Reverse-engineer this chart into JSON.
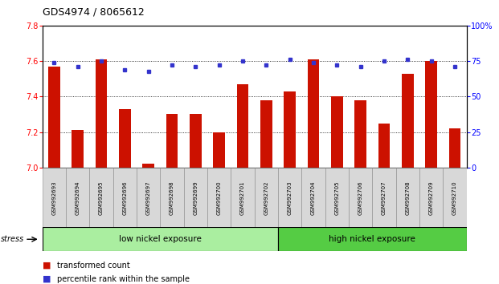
{
  "title": "GDS4974 / 8065612",
  "categories": [
    "GSM992693",
    "GSM992694",
    "GSM992695",
    "GSM992696",
    "GSM992697",
    "GSM992698",
    "GSM992699",
    "GSM992700",
    "GSM992701",
    "GSM992702",
    "GSM992703",
    "GSM992704",
    "GSM992705",
    "GSM992706",
    "GSM992707",
    "GSM992708",
    "GSM992709",
    "GSM992710"
  ],
  "red_values": [
    7.57,
    7.21,
    7.61,
    7.33,
    7.02,
    7.3,
    7.3,
    7.2,
    7.47,
    7.38,
    7.43,
    7.61,
    7.4,
    7.38,
    7.25,
    7.53,
    7.6,
    7.22
  ],
  "blue_values": [
    74,
    71,
    75,
    69,
    68,
    72,
    71,
    72,
    75,
    72,
    76,
    74,
    72,
    71,
    75,
    76,
    75,
    71
  ],
  "ylim_left": [
    7.0,
    7.8
  ],
  "ylim_right": [
    0,
    100
  ],
  "yticks_left": [
    7.0,
    7.2,
    7.4,
    7.6,
    7.8
  ],
  "yticks_right": [
    0,
    25,
    50,
    75,
    100
  ],
  "group1_label": "low nickel exposure",
  "group2_label": "high nickel exposure",
  "group1_count": 10,
  "group2_count": 8,
  "stress_label": "stress",
  "legend_red": "transformed count",
  "legend_blue": "percentile rank within the sample",
  "bar_color": "#cc1100",
  "dot_color": "#3333cc",
  "group1_color": "#aaeea0",
  "group2_color": "#55cc44",
  "tick_label_bg": "#d8d8d8",
  "title_fontsize": 9,
  "tick_fontsize": 7,
  "xtick_fontsize": 5,
  "legend_fontsize": 7,
  "group_fontsize": 7.5,
  "stress_fontsize": 7
}
